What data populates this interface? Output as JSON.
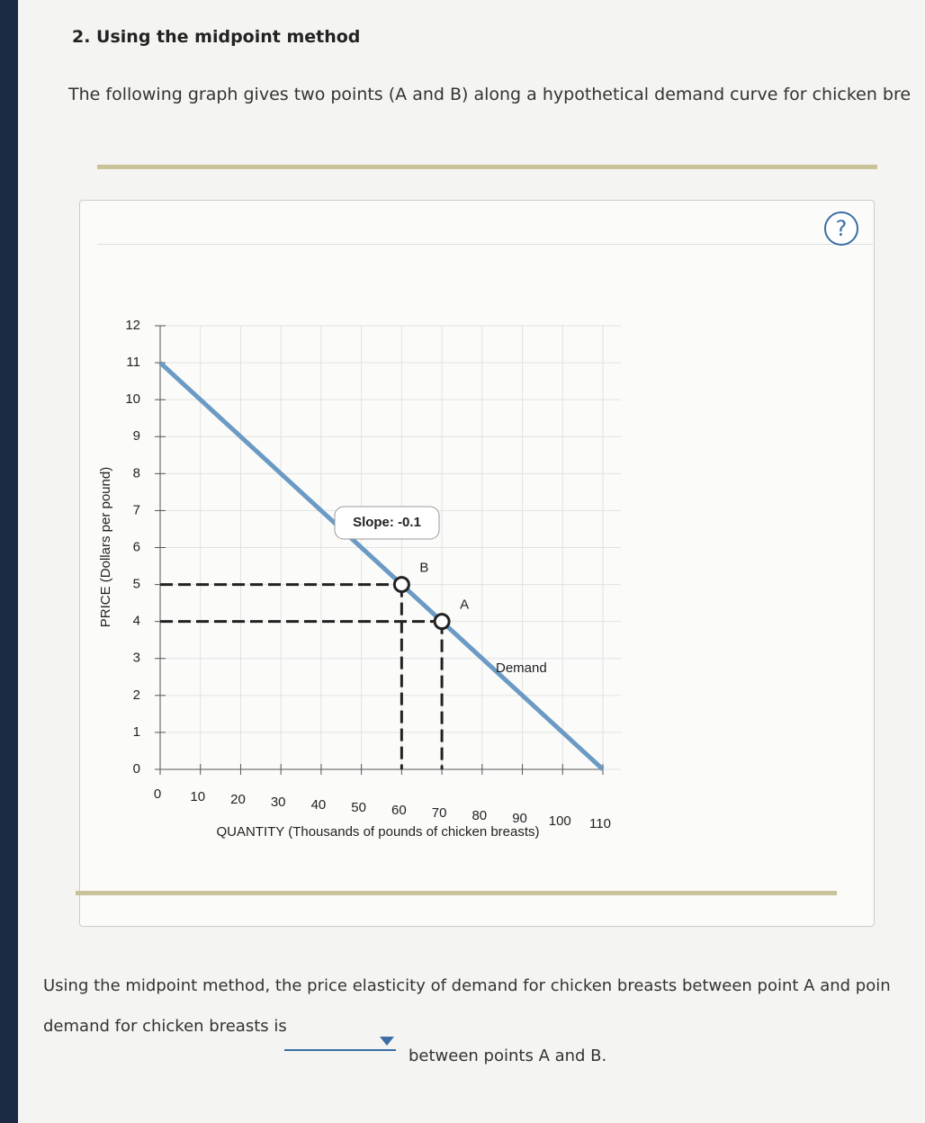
{
  "header": {
    "title": "2. Using the midpoint method",
    "intro": "The following graph gives two points (A and B) along a hypothetical demand curve for chicken bre",
    "help": "?"
  },
  "chart_data": {
    "type": "line",
    "x_label": "QUANTITY (Thousands of pounds of chicken breasts)",
    "y_label": "PRICE (Dollars per pound)",
    "series": [
      {
        "name": "Demand",
        "color": "#6b9ac4",
        "x": [
          0,
          110
        ],
        "values": [
          11,
          0
        ]
      }
    ],
    "points": [
      {
        "name": "B",
        "x": 60,
        "y": 5
      },
      {
        "name": "A",
        "x": 70,
        "y": 4
      }
    ],
    "annotation": "Slope: -0.1",
    "xlim": [
      0,
      110
    ],
    "xticks": [
      0,
      10,
      20,
      30,
      40,
      50,
      60,
      70,
      80,
      90,
      100,
      110
    ],
    "ylim": [
      0,
      12
    ],
    "yticks": [
      0,
      1,
      2,
      3,
      4,
      5,
      6,
      7,
      8,
      9,
      10,
      11,
      12
    ],
    "grid": true
  },
  "question": {
    "line1": "Using the midpoint method, the price elasticity of demand for chicken breasts between point A and poin",
    "line2_start": "demand for chicken breasts is",
    "line2_end": "between points A and B."
  }
}
